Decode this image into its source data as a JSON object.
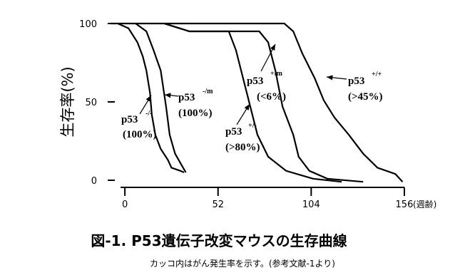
{
  "chart_data": {
    "type": "line",
    "y_label": "生存率(%)",
    "x_unit": "(週齢)",
    "xlim": [
      -8,
      160
    ],
    "ylim": [
      -5,
      105
    ],
    "xticks": [
      0,
      52,
      104,
      156
    ],
    "yticks": [
      0,
      50,
      100
    ],
    "series": [
      {
        "color": "#000000",
        "x": [
          -4,
          2,
          7,
          10,
          12,
          14,
          15,
          17,
          20,
          24,
          26,
          31,
          33
        ],
        "values": [
          100,
          97,
          88,
          79,
          70,
          56,
          42,
          29,
          20,
          13,
          8,
          6,
          5
        ]
      },
      {
        "color": "#000000",
        "x": [
          6,
          12,
          16,
          20,
          23,
          25,
          28,
          31,
          34
        ],
        "values": [
          100,
          95,
          83,
          70,
          47,
          29,
          17,
          11,
          5
        ]
      },
      {
        "color": "#000000",
        "x": [
          22,
          36,
          58,
          62,
          66,
          70,
          74,
          80,
          90,
          105,
          121
        ],
        "values": [
          100,
          95,
          95,
          83,
          65,
          47,
          29,
          15,
          6,
          1,
          -1
        ]
      },
      {
        "color": "#000000",
        "x": [
          22,
          36,
          75,
          80,
          84,
          88,
          94,
          97,
          103,
          113,
          133
        ],
        "values": [
          100,
          95,
          95,
          88,
          70,
          47,
          29,
          15,
          6,
          1,
          -1
        ]
      },
      {
        "color": "#000000",
        "x": [
          -8,
          89,
          94,
          99,
          106,
          111,
          117,
          125,
          133,
          141,
          151,
          155
        ],
        "values": [
          100,
          100,
          95,
          81,
          65,
          51,
          40,
          29,
          17,
          8,
          4,
          -1
        ]
      }
    ],
    "annotations": [
      {
        "text": "p53",
        "sup": "-/-",
        "rate": "(100%)"
      },
      {
        "text": "p53",
        "sup": "-/m",
        "rate": "(100%)"
      },
      {
        "text": "p53",
        "sup": "+/-",
        "rate": "(>80%)"
      },
      {
        "text": "p53",
        "sup": "+/m",
        "rate": "(<6%)"
      },
      {
        "text": "p53",
        "sup": "+/+",
        "rate": "(>45%)"
      }
    ],
    "caption": "図-1.  P53遺伝子改変マウスの生存曲線",
    "note": "カッコ内はがん発生率を示す。(参考文献-1より)"
  }
}
